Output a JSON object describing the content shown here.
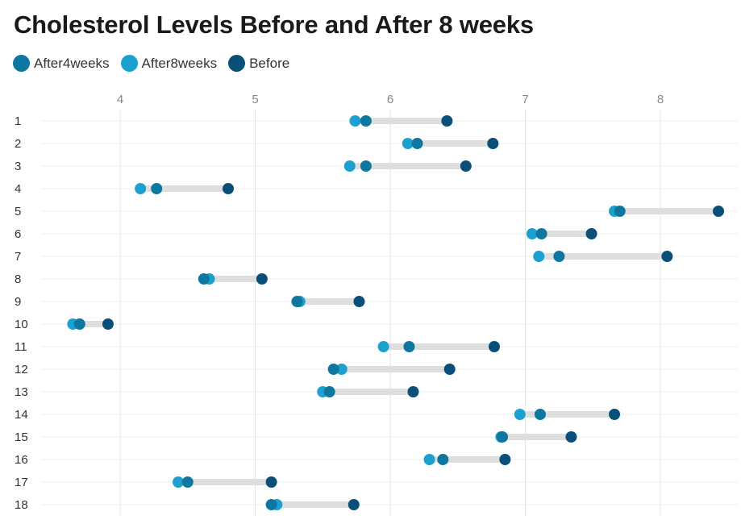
{
  "chart_data": {
    "type": "dumbbell",
    "title": "Cholesterol Levels Before and After 8 weeks",
    "xlim": [
      3.45,
      8.55
    ],
    "xticks": [
      "4",
      "5",
      "6",
      "7",
      "8"
    ],
    "legend_position": "top-left",
    "grid": true,
    "categories": [
      "1",
      "2",
      "3",
      "4",
      "5",
      "6",
      "7",
      "8",
      "9",
      "10",
      "11",
      "12",
      "13",
      "14",
      "15",
      "16",
      "17",
      "18"
    ],
    "series": [
      {
        "name": "After4weeks",
        "color": "#0e77a0",
        "values": [
          5.82,
          6.2,
          5.82,
          4.27,
          7.7,
          7.12,
          7.25,
          4.62,
          5.31,
          3.7,
          6.14,
          5.58,
          5.55,
          7.11,
          6.83,
          6.39,
          4.5,
          5.12
        ]
      },
      {
        "name": "After8weeks",
        "color": "#1ca0d0",
        "values": [
          5.74,
          6.13,
          5.7,
          4.15,
          7.66,
          7.05,
          7.1,
          4.66,
          5.33,
          3.65,
          5.95,
          5.64,
          5.5,
          6.96,
          6.82,
          6.29,
          4.43,
          5.16
        ]
      },
      {
        "name": "Before",
        "color": "#0a4f78",
        "values": [
          6.42,
          6.76,
          6.56,
          4.8,
          8.43,
          7.49,
          8.05,
          5.05,
          5.77,
          3.91,
          6.77,
          6.44,
          6.17,
          7.66,
          7.34,
          6.85,
          5.12,
          5.73
        ]
      }
    ]
  }
}
